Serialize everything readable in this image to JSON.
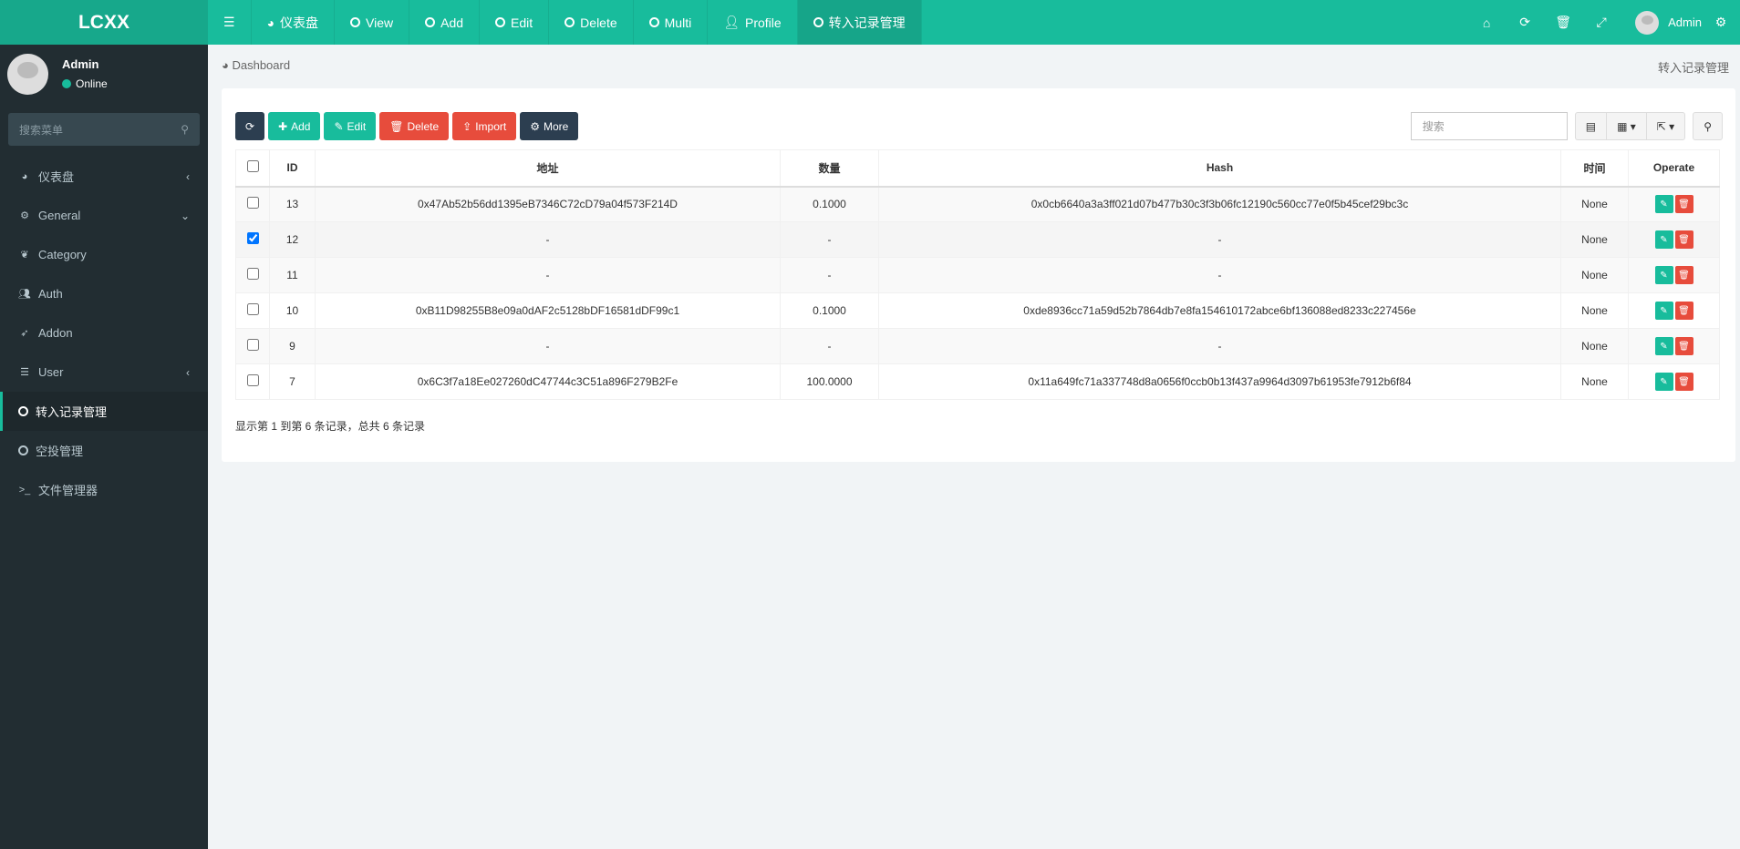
{
  "app": {
    "logo": "LCXX"
  },
  "topnav": {
    "items": [
      {
        "label": "仪表盘",
        "icon": "dashboard-icon"
      },
      {
        "label": "View",
        "icon": "circle-icon"
      },
      {
        "label": "Add",
        "icon": "circle-icon"
      },
      {
        "label": "Edit",
        "icon": "circle-icon"
      },
      {
        "label": "Delete",
        "icon": "circle-icon"
      },
      {
        "label": "Multi",
        "icon": "circle-icon"
      },
      {
        "label": "Profile",
        "icon": "user-icon"
      },
      {
        "label": "转入记录管理",
        "icon": "circle-icon",
        "active": true
      }
    ],
    "user": "Admin"
  },
  "sidebar": {
    "user": "Admin",
    "status": "Online",
    "search_placeholder": "搜索菜单",
    "items": [
      {
        "label": "仪表盘",
        "icon": "dashboard-icon"
      },
      {
        "label": "General",
        "icon": "cogs-icon"
      },
      {
        "label": "Category",
        "icon": "leaf-icon"
      },
      {
        "label": "Auth",
        "icon": "users-icon"
      },
      {
        "label": "Addon",
        "icon": "rocket-icon"
      },
      {
        "label": "User",
        "icon": "list-icon"
      },
      {
        "label": "转入记录管理",
        "icon": "circle-icon",
        "active": true
      },
      {
        "label": "空投管理",
        "icon": "circle-icon"
      },
      {
        "label": "文件管理器",
        "icon": "terminal-icon"
      }
    ]
  },
  "breadcrumb": {
    "home": "Dashboard",
    "current": "转入记录管理"
  },
  "toolbar": {
    "add": "Add",
    "edit": "Edit",
    "delete": "Delete",
    "import": "Import",
    "more": "More",
    "search_placeholder": "搜索"
  },
  "table": {
    "columns": [
      "ID",
      "地址",
      "数量",
      "Hash",
      "时间",
      "Operate"
    ],
    "rows": [
      {
        "id": "13",
        "address": "0x47Ab52b56dd1395eB7346C72cD79a04f573F214D",
        "amount": "0.1000",
        "hash": "0x0cb6640a3a3ff021d07b477b30c3f3b06fc12190c560cc77e0f5b45cef29bc3c",
        "time": "None",
        "checked": false
      },
      {
        "id": "12",
        "address": "-",
        "amount": "-",
        "hash": "-",
        "time": "None",
        "checked": true
      },
      {
        "id": "11",
        "address": "-",
        "amount": "-",
        "hash": "-",
        "time": "None",
        "checked": false
      },
      {
        "id": "10",
        "address": "0xB11D98255B8e09a0dAF2c5128bDF16581dDF99c1",
        "amount": "0.1000",
        "hash": "0xde8936cc71a59d52b7864db7e8fa154610172abce6bf136088ed8233c227456e",
        "time": "None",
        "checked": false
      },
      {
        "id": "9",
        "address": "-",
        "amount": "-",
        "hash": "-",
        "time": "None",
        "checked": false
      },
      {
        "id": "7",
        "address": "0x6C3f7a18Ee027260dC47744c3C51a896F279B2Fe",
        "amount": "100.0000",
        "hash": "0x11a649fc71a337748d8a0656f0ccb0b13f437a9964d3097b61953fe7912b6f84",
        "time": "None",
        "checked": false
      }
    ]
  },
  "pagination": {
    "summary": "显示第 1 到第 6 条记录，总共 6 条记录"
  }
}
